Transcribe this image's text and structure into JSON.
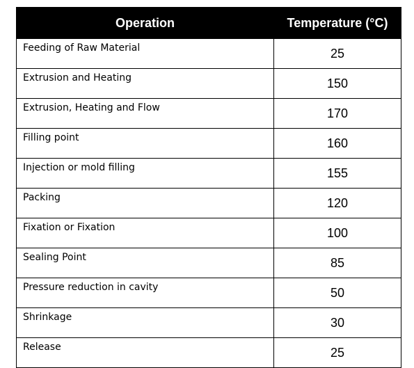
{
  "table": {
    "headers": {
      "operation": "Operation",
      "temperature": "Temperature (°C)"
    },
    "rows": [
      {
        "operation": "Feeding of Raw Material",
        "temperature": "25"
      },
      {
        "operation": "Extrusion and Heating",
        "temperature": "150"
      },
      {
        "operation": "Extrusion, Heating and Flow",
        "temperature": "170"
      },
      {
        "operation": "Filling point",
        "temperature": "160"
      },
      {
        "operation": "Injection or mold filling",
        "temperature": "155"
      },
      {
        "operation": "Packing",
        "temperature": "120"
      },
      {
        "operation": "Fixation or Fixation",
        "temperature": "100"
      },
      {
        "operation": "Sealing Point",
        "temperature": "85"
      },
      {
        "operation": "Pressure reduction in cavity",
        "temperature": "50"
      },
      {
        "operation": "Shrinkage",
        "temperature": "30"
      },
      {
        "operation": "Release",
        "temperature": "25"
      }
    ]
  },
  "colors": {
    "header_background": "#000000",
    "header_text": "#ffffff",
    "border": "#000000"
  }
}
